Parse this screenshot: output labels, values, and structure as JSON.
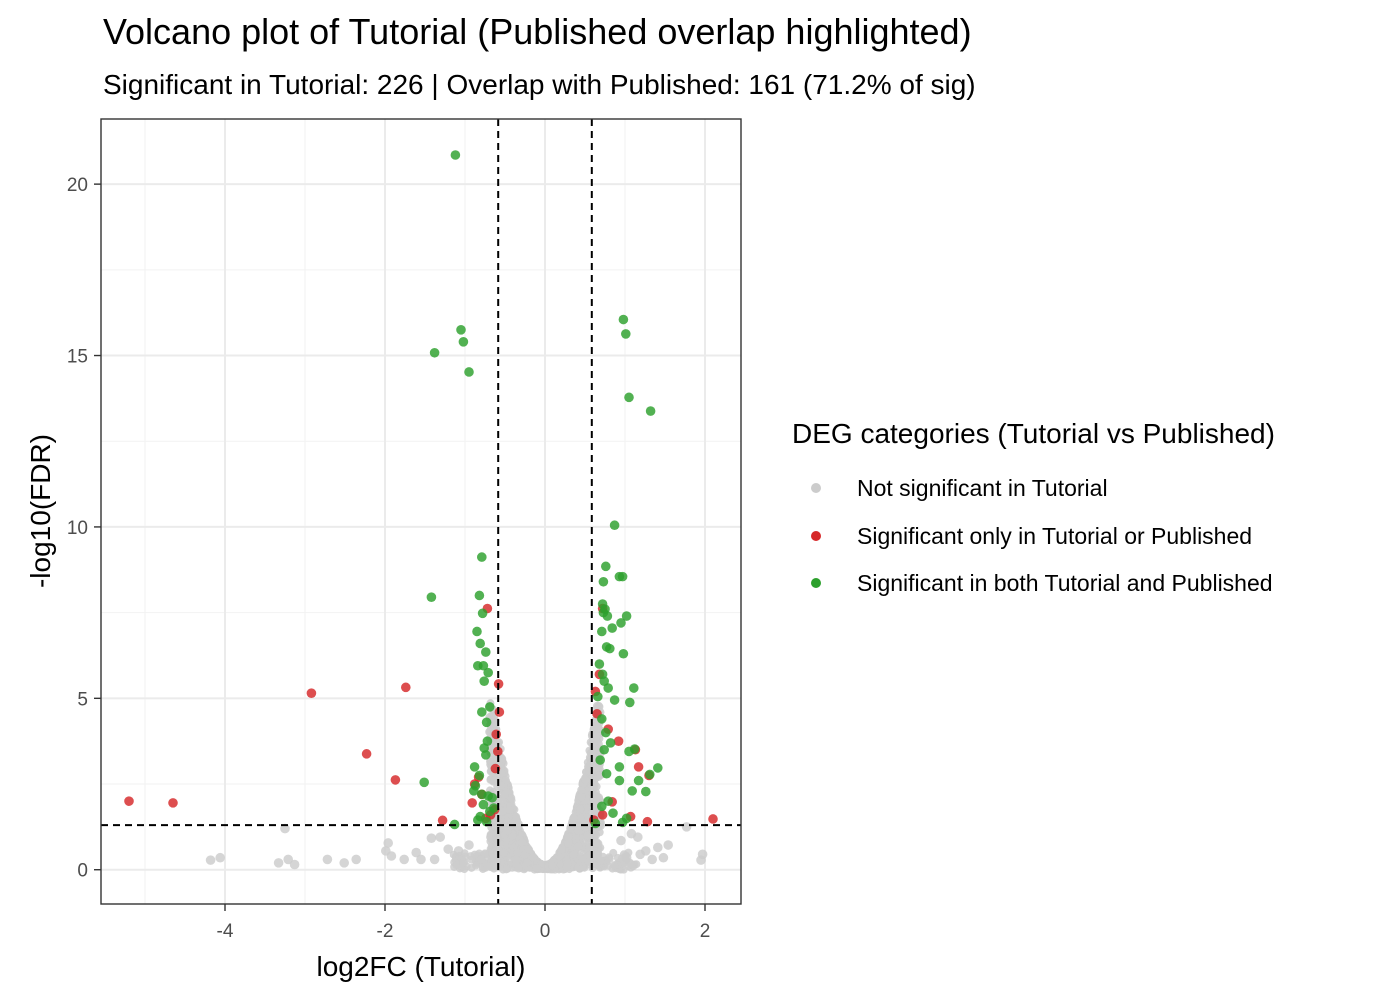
{
  "chart_data": {
    "type": "scatter",
    "title": "Volcano plot of Tutorial (Published overlap highlighted)",
    "subtitle": "Significant in Tutorial: 226 | Overlap with Published: 161 (71.2% of sig)",
    "xlabel": "log2FC (Tutorial)",
    "ylabel": "-log10(FDR)",
    "xlim": [
      -5.55,
      2.45
    ],
    "ylim": [
      -1.0,
      21.9
    ],
    "x_ticks": [
      -4,
      -2,
      0,
      2
    ],
    "x_tick_labels": [
      "-4",
      "-2",
      "0",
      "2"
    ],
    "y_ticks": [
      0,
      5,
      10,
      15,
      20
    ],
    "y_tick_labels": [
      "0",
      "5",
      "10",
      "15",
      "20"
    ],
    "grid": true,
    "thresholds": {
      "vlines": [
        -0.585,
        0.585
      ],
      "hline": 1.301
    },
    "legend": {
      "title": "DEG categories (Tutorial vs Published)",
      "placement": "right",
      "entries": [
        {
          "label": "Not significant in Tutorial",
          "color": "#cccccc"
        },
        {
          "label": "Significant only in Tutorial or Published",
          "color": "#d62728"
        },
        {
          "label": "Significant in both Tutorial and Published",
          "color": "#2ca02c"
        }
      ]
    },
    "series": [
      {
        "name": "Significant in both Tutorial and Published",
        "color": "#2ca02c",
        "x": [
          -1.12,
          -1.05,
          -1.02,
          -1.38,
          -0.95,
          0.98,
          1.01,
          1.05,
          1.32,
          0.87,
          0.76,
          0.93,
          0.97,
          0.73,
          0.72,
          -0.79,
          -0.82,
          -1.42,
          -0.78,
          -0.85,
          -0.81,
          -0.74,
          -0.77,
          -0.84,
          -0.71,
          -0.76,
          -0.69,
          -0.79,
          -0.73,
          0.75,
          0.73,
          0.78,
          0.84,
          1.02,
          0.95,
          0.71,
          0.77,
          0.81,
          0.98,
          1.11,
          0.68,
          0.72,
          0.74,
          0.66,
          0.79,
          0.87,
          1.06,
          0.71,
          0.76,
          0.82,
          1.12,
          1.05,
          1.41,
          0.93,
          1.31,
          1.17,
          1.26,
          0.74,
          0.69,
          0.77,
          0.93,
          1.09,
          -1.51,
          -0.88,
          -0.82,
          -0.74,
          -0.87,
          -0.79,
          -0.71,
          -0.77,
          -0.69,
          -0.81,
          -0.84,
          -0.73,
          -1.13,
          -0.76,
          -0.72,
          -0.89,
          0.79,
          0.71,
          0.85,
          1.02,
          0.97,
          0.63,
          -0.66,
          -0.64
        ],
        "y": [
          20.85,
          15.75,
          15.4,
          15.08,
          14.52,
          16.05,
          15.63,
          13.78,
          13.38,
          10.05,
          8.85,
          8.55,
          8.55,
          8.4,
          7.75,
          9.12,
          8.0,
          7.95,
          7.48,
          6.95,
          6.6,
          6.35,
          5.95,
          5.95,
          5.75,
          5.5,
          4.75,
          4.6,
          4.3,
          7.6,
          7.5,
          7.4,
          7.05,
          7.4,
          7.2,
          6.95,
          6.5,
          6.45,
          6.3,
          5.3,
          6.0,
          5.7,
          5.5,
          5.05,
          5.3,
          4.95,
          4.88,
          4.4,
          4.0,
          3.7,
          3.52,
          3.45,
          2.97,
          3.0,
          2.78,
          2.6,
          2.28,
          3.5,
          3.2,
          2.8,
          2.6,
          2.3,
          2.55,
          3.0,
          2.75,
          3.35,
          2.45,
          2.2,
          2.15,
          1.9,
          1.7,
          1.55,
          1.45,
          1.4,
          1.32,
          3.55,
          3.75,
          2.3,
          2.0,
          1.85,
          1.65,
          1.5,
          1.38,
          1.35,
          2.1,
          1.8
        ]
      },
      {
        "name": "Significant only in Tutorial or Published",
        "color": "#d62728",
        "x": [
          -5.2,
          -4.65,
          -2.92,
          -1.74,
          -2.23,
          -1.87,
          -1.28,
          -0.72,
          -0.58,
          -0.57,
          -0.61,
          -0.59,
          -0.62,
          -0.83,
          -0.88,
          -0.79,
          -0.91,
          -0.63,
          -0.68,
          -0.74,
          0.72,
          0.68,
          0.63,
          0.65,
          0.79,
          0.92,
          1.13,
          1.17,
          1.3,
          2.1,
          0.84,
          0.72,
          1.07,
          1.28,
          0.61
        ],
        "y": [
          2.0,
          1.95,
          5.15,
          5.32,
          3.38,
          2.62,
          1.44,
          7.62,
          5.42,
          4.6,
          3.95,
          3.45,
          2.95,
          2.7,
          2.5,
          2.2,
          1.95,
          1.75,
          1.6,
          1.5,
          7.62,
          5.7,
          5.2,
          4.55,
          4.1,
          3.75,
          3.5,
          3.0,
          2.75,
          1.48,
          1.98,
          1.6,
          1.55,
          1.4,
          1.45
        ]
      },
      {
        "name": "Not significant in Tutorial",
        "color": "#cccccc",
        "x": [
          -4.18,
          -4.06,
          -3.33,
          -3.21,
          -3.13,
          -2.72,
          -2.51,
          -2.36,
          -1.99,
          -1.96,
          -1.92,
          -1.76,
          -1.61,
          -1.55,
          -1.42,
          -1.31,
          -1.08,
          -1.21,
          -0.95,
          -0.6,
          -3.25,
          -1.38,
          1.77,
          1.97,
          1.95,
          1.54,
          1.26,
          1.16,
          1.08,
          1.34,
          1.41,
          1.48,
          1.19,
          1.02,
          0.95
        ],
        "y": [
          0.28,
          0.35,
          0.2,
          0.3,
          0.15,
          0.3,
          0.2,
          0.3,
          0.55,
          0.78,
          0.4,
          0.3,
          0.5,
          0.3,
          0.92,
          0.95,
          0.55,
          0.6,
          0.72,
          0.9,
          1.2,
          0.3,
          1.25,
          0.45,
          0.28,
          0.72,
          0.55,
          0.95,
          1.05,
          0.3,
          0.65,
          0.35,
          0.45,
          0.35,
          0.85
        ]
      }
    ]
  }
}
